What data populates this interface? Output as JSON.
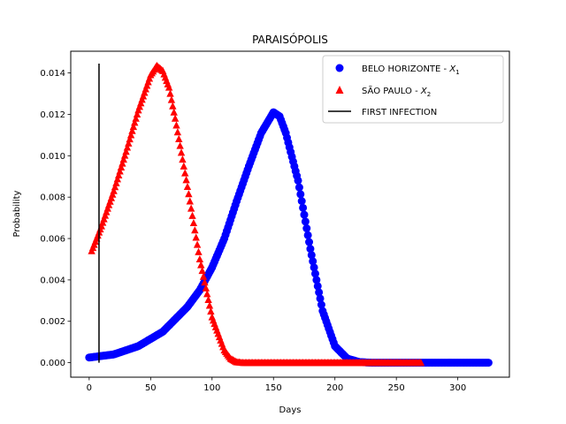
{
  "chart_data": {
    "type": "scatter",
    "title": "PARAISÓPOLIS",
    "xlabel": "Days",
    "ylabel": "Probability",
    "xlim": [
      -15,
      342
    ],
    "ylim": [
      -0.0007,
      0.01505
    ],
    "xticks": [
      0,
      50,
      100,
      150,
      200,
      250,
      300
    ],
    "yticks": [
      0.0,
      0.002,
      0.004,
      0.006,
      0.008,
      0.01,
      0.012,
      0.014
    ],
    "ytick_labels": [
      "0.000",
      "0.002",
      "0.004",
      "0.006",
      "0.008",
      "0.010",
      "0.012",
      "0.014"
    ],
    "legend_position": "upper right",
    "series": [
      {
        "name": "BELO HORIZONTE - X1",
        "label_main": "BELO HORIZONTE - ",
        "label_var": "X",
        "label_sub": "1",
        "marker": "circle",
        "color": "#0000ff",
        "x_start": 0,
        "x_end": 325,
        "x_step": 1,
        "keypoints": [
          [
            0,
            0.00025
          ],
          [
            20,
            0.0004
          ],
          [
            40,
            0.0008
          ],
          [
            60,
            0.0015
          ],
          [
            80,
            0.0027
          ],
          [
            90,
            0.0035
          ],
          [
            100,
            0.0046
          ],
          [
            110,
            0.006
          ],
          [
            120,
            0.0078
          ],
          [
            130,
            0.0095
          ],
          [
            140,
            0.0111
          ],
          [
            150,
            0.0121
          ],
          [
            155,
            0.0119
          ],
          [
            160,
            0.0111
          ],
          [
            170,
            0.0088
          ],
          [
            180,
            0.0055
          ],
          [
            190,
            0.0025
          ],
          [
            200,
            0.0008
          ],
          [
            210,
            0.0002
          ],
          [
            220,
            3e-05
          ],
          [
            230,
            0.0
          ],
          [
            325,
            0.0
          ]
        ]
      },
      {
        "name": "SÃO PAULO - X2",
        "label_main": "SÃO PAULO - ",
        "label_var": "X",
        "label_sub": "2",
        "marker": "triangle",
        "color": "#ff0000",
        "x_start": 2,
        "x_end": 270,
        "x_step": 1,
        "keypoints": [
          [
            2,
            0.0054
          ],
          [
            10,
            0.0066
          ],
          [
            20,
            0.0083
          ],
          [
            30,
            0.0102
          ],
          [
            40,
            0.0122
          ],
          [
            50,
            0.0139
          ],
          [
            55,
            0.01435
          ],
          [
            60,
            0.0141
          ],
          [
            65,
            0.0133
          ],
          [
            70,
            0.0118
          ],
          [
            80,
            0.0085
          ],
          [
            90,
            0.005
          ],
          [
            100,
            0.0022
          ],
          [
            110,
            0.0006
          ],
          [
            115,
            0.0002
          ],
          [
            120,
            3e-05
          ],
          [
            125,
            0.0
          ],
          [
            270,
            0.0
          ]
        ]
      }
    ],
    "vline": {
      "name": "FIRST INFECTION",
      "x": 8,
      "y_from": 0.0,
      "y_to": 0.01445,
      "color": "#000000"
    }
  }
}
